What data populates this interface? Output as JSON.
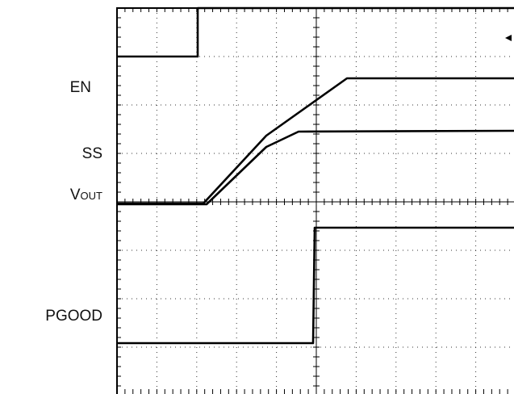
{
  "labels": {
    "en": "EN",
    "ss": "SS",
    "vout_main": "V",
    "vout_sub": "OUT",
    "pgood": "PGOOD"
  }
}
